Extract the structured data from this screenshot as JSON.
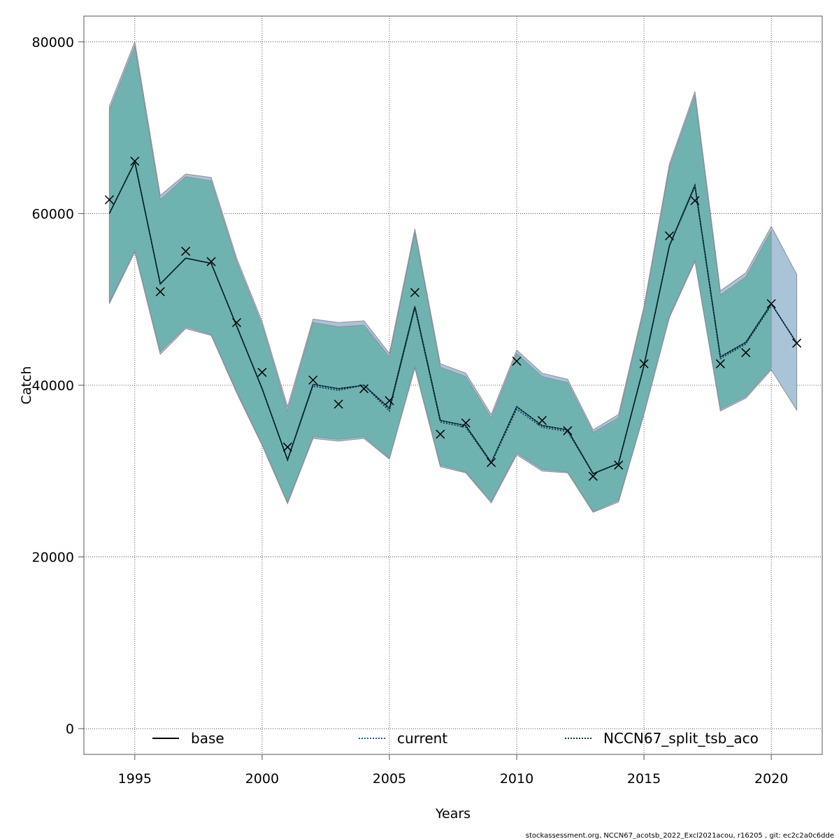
{
  "chart_data": {
    "type": "line",
    "xlabel": "Years",
    "ylabel": "Catch",
    "xlim": [
      1993,
      2022
    ],
    "ylim": [
      -3000,
      83000
    ],
    "grid": true,
    "x_ticks": [
      1995,
      2000,
      2005,
      2010,
      2015,
      2020
    ],
    "y_ticks": [
      0,
      20000,
      40000,
      60000,
      80000
    ],
    "x_tick_labels": [
      "1995",
      "2000",
      "2005",
      "2010",
      "2015",
      "2020"
    ],
    "y_tick_labels": [
      "0",
      "20000",
      "40000",
      "60000",
      "80000"
    ],
    "years": [
      1994,
      1995,
      1996,
      1997,
      1998,
      1999,
      2000,
      2001,
      2002,
      2003,
      2004,
      2005,
      2006,
      2007,
      2008,
      2009,
      2010,
      2011,
      2012,
      2013,
      2014,
      2015,
      2016,
      2017,
      2018,
      2019,
      2020,
      2021
    ],
    "observed": [
      61600,
      66100,
      50900,
      55600,
      54400,
      47300,
      41500,
      32800,
      40600,
      37800,
      39600,
      38200,
      50800,
      34300,
      35600,
      31000,
      42800,
      35900,
      34700,
      29400,
      30700,
      42500,
      57400,
      61500,
      42500,
      43800,
      49500,
      44900
    ],
    "series": [
      {
        "name": "base",
        "style": "solid",
        "color": "#000000",
        "x": [
          1994,
          1995,
          1996,
          1997,
          1998,
          1999,
          2000,
          2001,
          2002,
          2003,
          2004,
          2005,
          2006,
          2007,
          2008,
          2009,
          2010,
          2011,
          2012,
          2013,
          2014,
          2015,
          2016,
          2017,
          2018,
          2019,
          2020,
          2021
        ],
        "values": [
          60000,
          66000,
          51800,
          54800,
          54200,
          46900,
          39600,
          31300,
          40100,
          39600,
          40000,
          37300,
          49200,
          35900,
          35300,
          31000,
          37500,
          35300,
          34800,
          29700,
          30900,
          42300,
          56300,
          63300,
          43300,
          45000,
          49500,
          44900
        ],
        "band": null
      },
      {
        "name": "current",
        "style": "dotted",
        "color": "#1f5f9a",
        "band_color": "#a9c4d6",
        "x": [
          1994,
          1995,
          1996,
          1997,
          1998,
          1999,
          2000,
          2001,
          2002,
          2003,
          2004,
          2005,
          2006,
          2007,
          2008,
          2009,
          2010,
          2011,
          2012,
          2013,
          2014,
          2015,
          2016,
          2017,
          2018,
          2019,
          2020,
          2021
        ],
        "values": [
          60000,
          66000,
          51800,
          54800,
          54200,
          46900,
          39600,
          31300,
          40100,
          39600,
          40000,
          37300,
          49200,
          35900,
          35300,
          31000,
          37500,
          35300,
          34800,
          29700,
          30900,
          42300,
          56300,
          63300,
          43300,
          45000,
          49500,
          44900
        ],
        "lower": [
          49500,
          55500,
          43600,
          46600,
          45800,
          39100,
          33000,
          26200,
          33800,
          33500,
          33800,
          31400,
          42000,
          30500,
          29800,
          26300,
          31900,
          30000,
          29800,
          25200,
          26400,
          36600,
          47900,
          54400,
          37000,
          38500,
          41800,
          37100
        ],
        "upper": [
          72500,
          80000,
          62100,
          64600,
          64200,
          54800,
          47400,
          37500,
          47700,
          47300,
          47500,
          43700,
          58200,
          42500,
          41400,
          36600,
          44100,
          41400,
          40700,
          34800,
          36600,
          49200,
          65800,
          74200,
          51000,
          53100,
          58500,
          52900
        ]
      },
      {
        "name": "NCCN67_split_tsb_aco",
        "style": "dotted",
        "color": "#003b33",
        "band_color": "#6fb3b1",
        "x": [
          1994,
          1995,
          1996,
          1997,
          1998,
          1999,
          2000,
          2001,
          2002,
          2003,
          2004,
          2005,
          2006,
          2007,
          2008,
          2009,
          2010,
          2011,
          2012,
          2013,
          2014,
          2015,
          2016,
          2017,
          2018,
          2019,
          2020
        ],
        "values": [
          60000,
          66000,
          51800,
          54800,
          54200,
          46900,
          39600,
          31300,
          39900,
          39400,
          40000,
          37000,
          49000,
          35700,
          35100,
          30900,
          37200,
          35100,
          34600,
          29700,
          30900,
          42300,
          56200,
          63100,
          43100,
          44800,
          49300
        ],
        "lower": [
          49700,
          55700,
          43900,
          46800,
          45900,
          39300,
          33100,
          26400,
          34000,
          33700,
          34000,
          31500,
          42200,
          30700,
          29900,
          26500,
          32100,
          30200,
          29900,
          25300,
          26600,
          36700,
          48100,
          54600,
          37200,
          38700,
          42000
        ],
        "upper": [
          72000,
          79500,
          61600,
          64300,
          63800,
          54400,
          47000,
          37000,
          47300,
          46800,
          47000,
          43300,
          57800,
          42100,
          41000,
          36200,
          43700,
          41000,
          40300,
          34500,
          36200,
          48800,
          65400,
          73800,
          50500,
          52600,
          58000
        ]
      }
    ],
    "legend": [
      "base",
      "current",
      "NCCN67_split_tsb_aco"
    ],
    "legend_position": "bottom"
  },
  "footer": "stockassessment.org, NCCN67_acotsb_2022_Excl2021acou, r16205 , git: ec2c2a0c6dde"
}
